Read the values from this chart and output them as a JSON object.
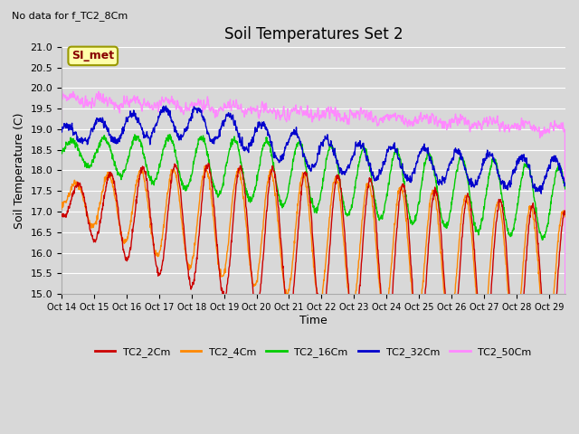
{
  "title": "Soil Temperatures Set 2",
  "subtitle": "No data for f_TC2_8Cm",
  "xlabel": "Time",
  "ylabel": "Soil Temperature (C)",
  "ylim": [
    15.0,
    21.0
  ],
  "yticks": [
    15.0,
    15.5,
    16.0,
    16.5,
    17.0,
    17.5,
    18.0,
    18.5,
    19.0,
    19.5,
    20.0,
    20.5,
    21.0
  ],
  "xtick_labels": [
    "Oct 14",
    "Oct 15",
    "Oct 16",
    "Oct 17",
    "Oct 18",
    "Oct 19",
    "Oct 20",
    "Oct 21",
    "Oct 22",
    "Oct 23",
    "Oct 24",
    "Oct 25",
    "Oct 26",
    "Oct 27",
    "Oct 28",
    "Oct 29"
  ],
  "legend_entries": [
    "TC2_2Cm",
    "TC2_4Cm",
    "TC2_16Cm",
    "TC2_32Cm",
    "TC2_50Cm"
  ],
  "legend_colors": [
    "#cc0000",
    "#ff8800",
    "#00cc00",
    "#0000cc",
    "#ff88ff"
  ],
  "bg_color": "#d8d8d8",
  "plot_bg_color": "#d8d8d8",
  "grid_color": "#ffffff",
  "annotation_box_text": "SI_met",
  "annotation_box_color": "#ffffaa",
  "annotation_box_border": "#999900"
}
